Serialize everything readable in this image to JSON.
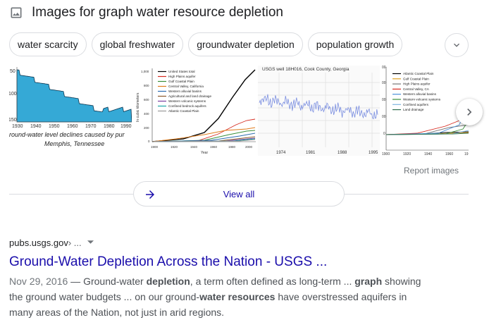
{
  "header": {
    "icon": "image-icon",
    "title": "Images for graph water resource depletion"
  },
  "chips": [
    {
      "label": "water scarcity"
    },
    {
      "label": "global freshwater"
    },
    {
      "label": "groundwater depletion"
    },
    {
      "label": "population growth"
    }
  ],
  "thumbnails": {
    "t1": {
      "y_ticks": [
        "50",
        "100",
        "150"
      ],
      "x_ticks": [
        "1930",
        "1940",
        "1950",
        "1960",
        "1970",
        "1980",
        "1990"
      ],
      "caption_line1": "round-water level declines caused by pur",
      "caption_line2": "Memphis, Tennessee"
    },
    "t2": {
      "y_label": "In cubic kilometers",
      "y_ticks": [
        "1,000",
        "800",
        "600",
        "400",
        "200",
        "0"
      ],
      "x_ticks": [
        "1900",
        "1920",
        "1940",
        "1960",
        "1980",
        "2000"
      ],
      "x_label": "Year",
      "legend": [
        {
          "label": "United States total",
          "color": "#000000"
        },
        {
          "label": "High Plains aquifer",
          "color": "#d62a1f"
        },
        {
          "label": "Gulf Coastal Plain",
          "color": "#3a8f3a"
        },
        {
          "label": "Central Valley, California",
          "color": "#e07b1a"
        },
        {
          "label": "Western alluvial basins",
          "color": "#2b6cb0"
        },
        {
          "label": "Agricultural and land drainage",
          "color": "#8b5a2b"
        },
        {
          "label": "Western volcanic systems",
          "color": "#7a3fa0"
        },
        {
          "label": "Confined bedrock aquifers",
          "color": "#1aa6a6"
        },
        {
          "label": "Atlantic Coastal Plain",
          "color": "#999999"
        }
      ]
    },
    "t3": {
      "title": "USGS well 18H016, Cook County, Georgia",
      "x_ticks": [
        "1974",
        "1981",
        "1988",
        "1995"
      ]
    },
    "t4": {
      "y_ticks": [
        "00",
        "00",
        "00",
        "00",
        "0"
      ],
      "x_ticks": [
        "1900",
        "1920",
        "1940",
        "1960",
        "19"
      ],
      "legend": [
        {
          "label": "Atlantic Coastal Plain",
          "color": "#000000"
        },
        {
          "label": "Gulf Coastal Plain",
          "color": "#e0a020"
        },
        {
          "label": "High Plains aquifer",
          "color": "#777777"
        },
        {
          "label": "Central Valley, CA",
          "color": "#d62a1f"
        },
        {
          "label": "Western alluvial basins",
          "color": "#4a90d9"
        },
        {
          "label": "Western volcanic systems",
          "color": "#3a8f3a"
        },
        {
          "label": "Confined aquifers",
          "color": "#7fb5e0"
        },
        {
          "label": "Land drainage",
          "color": "#2f6f4f"
        }
      ]
    }
  },
  "report_label": "Report images",
  "view_all_label": "View all",
  "result": {
    "site": "pubs.usgs.gov",
    "path": " › ...",
    "title": "Ground-Water Depletion Across the Nation - USGS ...",
    "date": "Nov 29, 2016",
    "snippet": [
      {
        "text": " — Ground-water ",
        "bold": false
      },
      {
        "text": "depletion",
        "bold": true
      },
      {
        "text": ", a term often defined as long-term ... ",
        "bold": false
      },
      {
        "text": "graph",
        "bold": true
      },
      {
        "text": " showing the ground water budgets ... on our ground-",
        "bold": false
      },
      {
        "text": "water resources",
        "bold": true
      },
      {
        "text": " have overstressed aquifers in many areas of the Nation, not just in arid regions.",
        "bold": false
      }
    ]
  },
  "colors": {
    "link": "#1a0dab",
    "hydrograph_fill": "#35a9d6",
    "well_line": "#7a8ee0"
  }
}
